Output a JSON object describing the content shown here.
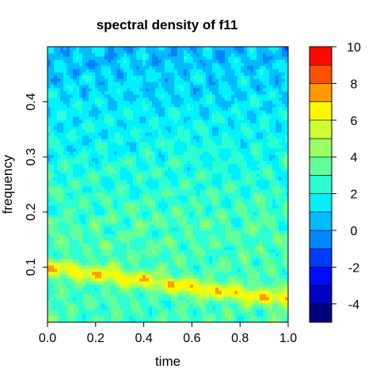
{
  "chart_data": {
    "type": "heatmap",
    "title": "spectral density of f11",
    "xlabel": "time",
    "ylabel": "frequency",
    "xlim": [
      0,
      1
    ],
    "ylim": [
      0,
      0.5
    ],
    "x_ticks": [
      "0.0",
      "0.2",
      "0.4",
      "0.6",
      "0.8",
      "1.0"
    ],
    "y_ticks": [
      "0.1",
      "0.2",
      "0.3",
      "0.4"
    ],
    "grid": false,
    "colorbar": {
      "position": "right",
      "range": [
        -5,
        10
      ],
      "step": 1,
      "tick_labels": [
        "10",
        "8",
        "6",
        "4",
        "2",
        "0",
        "-2",
        "-4"
      ],
      "colors": [
        "#00007F",
        "#0000C3",
        "#0008FF",
        "#003CFF",
        "#0085FF",
        "#00BBFF",
        "#00F1FF",
        "#2BFFD3",
        "#62FF9C",
        "#98FF66",
        "#CEFF30",
        "#FFF900",
        "#FF9B00",
        "#FF5000",
        "#FF0800",
        "#C80000",
        "#7F0000"
      ]
    },
    "description_of_values": {
      "peak_band": {
        "frequency_start": 0.1,
        "frequency_end": 0.04,
        "level": 7
      },
      "low_freq_level": 3,
      "mid_freq_level": 3,
      "high_freq_level": 0.5
    }
  }
}
